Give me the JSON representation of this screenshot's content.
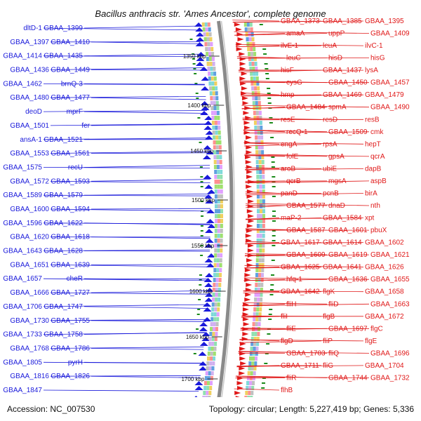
{
  "title": "Bacillus anthracis str. 'Ames Ancestor', complete genome",
  "footer": {
    "accession": "Accession: NC_007530",
    "summary": "Topology: circular; Length: 5,227,419 bp; Genes: 5,336"
  },
  "kbp_ticks": [
    "1350 kbp",
    "1400 kbp",
    "1450 kbp",
    "1500 kbp",
    "1550 kbp",
    "1600 kbp",
    "1650 kbp",
    "1700 kbp"
  ],
  "colors": {
    "reverse_strand": "#1a1adb",
    "forward_strand": "#e01818",
    "backbone": "#8a8a8a",
    "tick": "#1a8a1a"
  },
  "left_labels": [
    "dltD-1",
    "GBAA_1399",
    "GBAA_1397",
    "GBAA_1410",
    "GBAA_1414",
    "GBAA_1435",
    "GBAA_1436",
    "GBAA_1449",
    "GBAA_1462",
    "brnQ-3",
    "GBAA_1480",
    "GBAA_1477",
    "deoD",
    "mprF",
    "GBAA_1501",
    "fer",
    "ansA-1",
    "GBAA_1521",
    "GBAA_1553",
    "GBAA_1561",
    "GBAA_1575",
    "recU",
    "GBAA_1572",
    "GBAA_1593",
    "GBAA_1589",
    "GBAA_1579",
    "GBAA_1600",
    "GBAA_1594",
    "GBAA_1596",
    "GBAA_1622",
    "GBAA_1620",
    "GBAA_1618",
    "GBAA_1643",
    "GBAA_1628",
    "GBAA_1651",
    "GBAA_1639",
    "GBAA_1657",
    "cheR",
    "GBAA_1666",
    "GBAA_1727",
    "GBAA_1706",
    "GBAA_1747",
    "GBAA_1730",
    "GBAA_1755",
    "GBAA_1733",
    "GBAA_1758",
    "GBAA_1768",
    "GBAA_1786",
    "GBAA_1805",
    "pyrH",
    "GBAA_1816",
    "GBAA_1826",
    "GBAA_1847"
  ],
  "right_labels": [
    "GBAA_1373",
    "GBAA_1385",
    "GBAA_1395",
    "amaA",
    "uppP",
    "GBAA_1409",
    "ilvE-1",
    "leuA",
    "ilvC-1",
    "leuC",
    "hisD",
    "hisG",
    "hisF",
    "GBAA_1437",
    "lysA",
    "cysG",
    "GBAA_1450",
    "GBAA_1457",
    "hmp",
    "GBAA_1469",
    "GBAA_1479",
    "GBAA_1484",
    "spmA",
    "GBAA_1490",
    "resE",
    "resD",
    "resB",
    "recQ-1",
    "GBAA_1509",
    "cmk",
    "engA",
    "rpsA",
    "hepT",
    "folE",
    "gpsA",
    "qcrA",
    "aroB",
    "ubiE",
    "dapB",
    "qcrB",
    "mgsA",
    "aspB",
    "panD",
    "pcnB",
    "birA",
    "GBAA_1577",
    "dnaD",
    "nth",
    "maP-2",
    "GBAA_1584",
    "xpt",
    "GBAA_1587",
    "GBAA_1601",
    "pbuX",
    "GBAA_1617",
    "GBAA_1614",
    "GBAA_1602",
    "GBAA_1609",
    "GBAA_1619",
    "GBAA_1621",
    "GBAA_1625",
    "GBAA_1641",
    "GBAA_1626",
    "hfq-1",
    "GBAA_1636",
    "GBAA_1655",
    "GBAA_1642",
    "flgK",
    "GBAA_1658",
    "fliH",
    "fliD",
    "GBAA_1663",
    "fliI",
    "flgB",
    "GBAA_1672",
    "fliE",
    "GBAA_1697",
    "flgC",
    "flgD",
    "fliP",
    "flgE",
    "GBAA_1703",
    "fliQ",
    "GBAA_1696",
    "GBAA_1711",
    "fliG",
    "GBAA_1704",
    "fliR",
    "GBAA_1744",
    "GBAA_1732",
    "flhB"
  ]
}
